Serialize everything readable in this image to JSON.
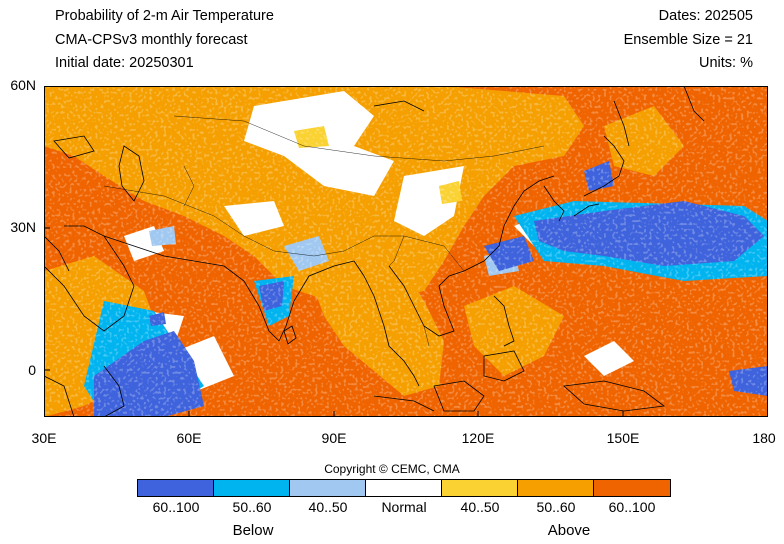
{
  "header": {
    "title": "Probability of 2-m Air Temperature",
    "model": "CMA-CPSv3 monthly forecast",
    "initial_date": "Initial date: 20250301",
    "dates": "Dates: 202505",
    "ensemble": "Ensemble Size = 21",
    "units": "Units: %"
  },
  "axes": {
    "y_ticks": [
      "60N",
      "30N",
      "0"
    ],
    "x_ticks": [
      "30E",
      "60E",
      "90E",
      "120E",
      "150E",
      "180"
    ]
  },
  "copyright": "Copyright © CEMC, CMA",
  "legend": {
    "items": [
      {
        "label": "60..100",
        "color": "#3f63dc"
      },
      {
        "label": "50..60",
        "color": "#00b4f0"
      },
      {
        "label": "40..50",
        "color": "#a0c8f0"
      },
      {
        "label": "Normal",
        "color": "#ffffff"
      },
      {
        "label": "40..50",
        "color": "#fad232"
      },
      {
        "label": "50..60",
        "color": "#f5a000"
      },
      {
        "label": "60..100",
        "color": "#f06400"
      }
    ],
    "below_label": "Below",
    "above_label": "Above"
  },
  "map": {
    "extent": {
      "lon": [
        30,
        180
      ],
      "lat": [
        -10,
        60
      ]
    },
    "dominant_category": "Above 60..100"
  }
}
